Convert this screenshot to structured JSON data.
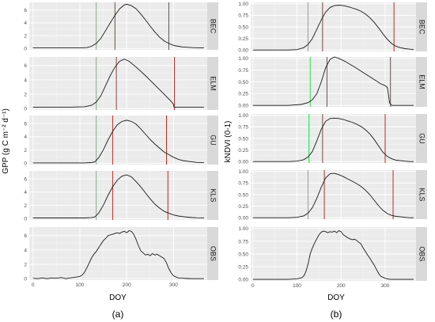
{
  "colors": {
    "green_line": "#33dd55",
    "red_line": "#b2322c"
  },
  "panel_a": {
    "label": "(a)",
    "ylabel": "GPP (g C m⁻² d⁻¹)",
    "xlabel": "DOY"
  },
  "panel_b": {
    "label": "(b)",
    "ylabel": "kNDVI (0-1)",
    "xlabel": "DOY"
  },
  "chart_data": [
    {
      "type": "line",
      "title": "",
      "panel_label": "(a)",
      "xlabel": "DOY",
      "ylabel": "GPP (g C m⁻² d⁻¹)",
      "xlim": [
        -8,
        372
      ],
      "xticks": [
        0,
        100,
        200,
        300
      ],
      "grid": true,
      "facets": [
        {
          "name": "BEC",
          "ylim": [
            -0.2,
            7.2
          ],
          "yticks": [
            0,
            2,
            4,
            6
          ],
          "x": [
            0,
            80,
            100,
            115,
            125,
            135,
            145,
            155,
            165,
            175,
            185,
            195,
            200,
            210,
            220,
            230,
            240,
            250,
            260,
            270,
            280,
            290,
            300,
            310,
            320,
            330,
            340,
            350,
            365
          ],
          "y": [
            0.1,
            0.1,
            0.1,
            0.15,
            0.35,
            0.8,
            1.6,
            2.8,
            4.0,
            5.2,
            6.2,
            6.8,
            6.9,
            6.7,
            6.2,
            5.4,
            4.5,
            3.5,
            2.6,
            1.8,
            1.2,
            0.8,
            0.5,
            0.35,
            0.25,
            0.2,
            0.15,
            0.12,
            0.1
          ],
          "vlines": [
            {
              "x": 135,
              "color": "green"
            },
            {
              "x": 175,
              "color": "red"
            },
            {
              "x": 290,
              "color": "red"
            }
          ]
        },
        {
          "name": "ELM",
          "ylim": [
            -0.2,
            7.2
          ],
          "yticks": [
            0,
            2,
            4,
            6
          ],
          "x": [
            0,
            80,
            110,
            125,
            135,
            145,
            155,
            165,
            175,
            185,
            195,
            205,
            220,
            240,
            260,
            280,
            295,
            300,
            301,
            310,
            320,
            340,
            365
          ],
          "y": [
            0.2,
            0.2,
            0.25,
            0.45,
            0.9,
            1.8,
            3.2,
            4.6,
            5.8,
            6.6,
            6.9,
            6.6,
            5.8,
            4.6,
            3.3,
            2.0,
            1.0,
            0.6,
            0.2,
            0.2,
            0.2,
            0.2,
            0.2
          ],
          "vlines": [
            {
              "x": 135,
              "color": "green"
            },
            {
              "x": 178,
              "color": "red"
            },
            {
              "x": 302,
              "color": "red"
            }
          ]
        },
        {
          "name": "GU",
          "ylim": [
            -0.2,
            7.2
          ],
          "yticks": [
            0,
            2,
            4,
            6
          ],
          "x": [
            0,
            80,
            110,
            125,
            132,
            140,
            150,
            160,
            170,
            180,
            190,
            200,
            210,
            220,
            230,
            240,
            250,
            260,
            270,
            280,
            290,
            300,
            310,
            320,
            330,
            340,
            350,
            365
          ],
          "y": [
            0.05,
            0.05,
            0.05,
            0.1,
            0.2,
            0.8,
            2.0,
            3.5,
            4.8,
            5.8,
            6.3,
            6.5,
            6.3,
            5.9,
            5.2,
            4.4,
            3.6,
            2.9,
            2.3,
            1.7,
            1.3,
            0.9,
            0.6,
            0.4,
            0.3,
            0.2,
            0.12,
            0.08
          ],
          "vlines": [
            {
              "x": 135,
              "color": "green"
            },
            {
              "x": 170,
              "color": "red"
            },
            {
              "x": 285,
              "color": "red"
            }
          ]
        },
        {
          "name": "KLS",
          "ylim": [
            -0.2,
            7.2
          ],
          "yticks": [
            0,
            2,
            4,
            6
          ],
          "x": [
            0,
            80,
            110,
            125,
            132,
            140,
            150,
            160,
            170,
            180,
            190,
            200,
            210,
            220,
            230,
            240,
            250,
            260,
            270,
            280,
            290,
            300,
            310,
            320,
            330,
            340,
            350,
            365
          ],
          "y": [
            0.1,
            0.1,
            0.1,
            0.15,
            0.25,
            0.8,
            2.0,
            3.5,
            4.8,
            5.8,
            6.4,
            6.6,
            6.3,
            5.6,
            4.8,
            3.9,
            3.0,
            2.2,
            1.6,
            1.1,
            0.8,
            0.55,
            0.4,
            0.3,
            0.22,
            0.16,
            0.12,
            0.1
          ],
          "vlines": [
            {
              "x": 135,
              "color": "green"
            },
            {
              "x": 170,
              "color": "red"
            },
            {
              "x": 288,
              "color": "red"
            }
          ]
        },
        {
          "name": "OBS",
          "ylim": [
            -0.2,
            7.2
          ],
          "yticks": [
            0,
            2,
            4,
            6
          ],
          "x": [
            0,
            10,
            20,
            30,
            40,
            50,
            60,
            70,
            80,
            90,
            100,
            105,
            110,
            115,
            120,
            125,
            130,
            135,
            140,
            145,
            150,
            155,
            160,
            165,
            170,
            175,
            180,
            185,
            190,
            195,
            200,
            205,
            210,
            215,
            220,
            225,
            230,
            235,
            240,
            245,
            250,
            255,
            260,
            265,
            270,
            275,
            280,
            285,
            290,
            295,
            300,
            310,
            320,
            330,
            340,
            350,
            360,
            365
          ],
          "y": [
            0.05,
            0.0,
            0.1,
            0.0,
            0.1,
            0.05,
            0.15,
            0.0,
            0.1,
            0.2,
            0.3,
            0.5,
            0.9,
            1.5,
            2.2,
            2.9,
            3.4,
            3.8,
            4.3,
            4.8,
            5.3,
            5.6,
            6.0,
            6.1,
            6.2,
            6.3,
            6.4,
            6.3,
            6.5,
            6.6,
            6.4,
            6.7,
            6.6,
            6.2,
            5.5,
            4.6,
            3.9,
            3.6,
            3.3,
            3.4,
            3.2,
            3.5,
            3.3,
            3.4,
            3.2,
            3.0,
            2.8,
            2.2,
            1.4,
            0.8,
            0.4,
            0.1,
            0.05,
            0.02,
            0.0,
            0.0,
            0.0,
            0.0
          ],
          "vlines": []
        }
      ]
    },
    {
      "type": "line",
      "title": "",
      "panel_label": "(b)",
      "xlabel": "DOY",
      "ylabel": "kNDVI (0-1)",
      "xlim": [
        -5,
        370
      ],
      "xticks": [
        0,
        100,
        200,
        300
      ],
      "grid": true,
      "facets": [
        {
          "name": "BEC",
          "ylim": [
            -0.03,
            1.03
          ],
          "yticks": [
            0.0,
            0.25,
            0.5,
            0.75,
            1.0
          ],
          "ytick_labels": [
            "0.00",
            "0.25",
            "0.50",
            "0.75",
            "1.00"
          ],
          "x": [
            0,
            80,
            100,
            115,
            125,
            135,
            145,
            155,
            165,
            175,
            185,
            195,
            205,
            215,
            225,
            235,
            245,
            255,
            265,
            275,
            285,
            295,
            305,
            315,
            325,
            335,
            345,
            355,
            365
          ],
          "y": [
            0.0,
            0.0,
            0.01,
            0.05,
            0.12,
            0.25,
            0.45,
            0.65,
            0.82,
            0.92,
            0.96,
            0.97,
            0.96,
            0.94,
            0.91,
            0.88,
            0.84,
            0.78,
            0.7,
            0.6,
            0.48,
            0.35,
            0.23,
            0.14,
            0.08,
            0.05,
            0.03,
            0.02,
            0.01
          ],
          "vlines": [
            {
              "x": 125,
              "color": "green"
            },
            {
              "x": 158,
              "color": "red"
            },
            {
              "x": 320,
              "color": "red"
            }
          ]
        },
        {
          "name": "ELM",
          "ylim": [
            -0.03,
            1.03
          ],
          "yticks": [
            0.0,
            0.25,
            0.5,
            0.75,
            1.0
          ],
          "ytick_labels": [
            "0.00",
            "0.25",
            "0.50",
            "0.75",
            "1.00"
          ],
          "x": [
            0,
            80,
            110,
            125,
            135,
            145,
            155,
            165,
            175,
            185,
            195,
            210,
            230,
            250,
            270,
            290,
            300,
            305,
            308,
            310,
            315,
            330,
            350,
            365
          ],
          "y": [
            0.0,
            0.0,
            0.02,
            0.06,
            0.12,
            0.25,
            0.5,
            0.8,
            0.98,
            1.03,
            1.0,
            0.93,
            0.82,
            0.7,
            0.58,
            0.46,
            0.42,
            0.38,
            0.2,
            0.05,
            0.0,
            0.0,
            0.0,
            0.0
          ],
          "vlines": [
            {
              "x": 130,
              "color": "green"
            },
            {
              "x": 168,
              "color": "red"
            },
            {
              "x": 312,
              "color": "red"
            }
          ]
        },
        {
          "name": "GU",
          "ylim": [
            -0.03,
            1.03
          ],
          "yticks": [
            0.0,
            0.25,
            0.5,
            0.75,
            1.0
          ],
          "ytick_labels": [
            "0.00",
            "0.25",
            "0.50",
            "0.75",
            "1.00"
          ],
          "x": [
            0,
            80,
            100,
            115,
            125,
            135,
            145,
            155,
            165,
            175,
            185,
            195,
            205,
            215,
            225,
            235,
            245,
            255,
            265,
            275,
            285,
            295,
            305,
            315,
            325,
            335,
            345,
            355,
            365
          ],
          "y": [
            0.0,
            0.0,
            0.01,
            0.04,
            0.1,
            0.22,
            0.45,
            0.7,
            0.87,
            0.93,
            0.94,
            0.93,
            0.91,
            0.88,
            0.85,
            0.81,
            0.76,
            0.69,
            0.6,
            0.48,
            0.34,
            0.2,
            0.11,
            0.06,
            0.03,
            0.02,
            0.01,
            0.0,
            0.0
          ],
          "vlines": [
            {
              "x": 127,
              "color": "green"
            },
            {
              "x": 158,
              "color": "red"
            },
            {
              "x": 300,
              "color": "red"
            }
          ]
        },
        {
          "name": "KLS",
          "ylim": [
            -0.03,
            1.03
          ],
          "yticks": [
            0.0,
            0.25,
            0.5,
            0.75,
            1.0
          ],
          "ytick_labels": [
            "0.00",
            "0.25",
            "0.50",
            "0.75",
            "1.00"
          ],
          "x": [
            0,
            80,
            100,
            115,
            125,
            135,
            145,
            155,
            165,
            175,
            185,
            195,
            205,
            215,
            225,
            235,
            245,
            255,
            265,
            275,
            285,
            295,
            305,
            315,
            325,
            335,
            345,
            355,
            365
          ],
          "y": [
            0.0,
            0.0,
            0.01,
            0.04,
            0.1,
            0.22,
            0.42,
            0.66,
            0.86,
            0.95,
            0.96,
            0.93,
            0.89,
            0.84,
            0.79,
            0.74,
            0.68,
            0.6,
            0.5,
            0.38,
            0.26,
            0.16,
            0.09,
            0.05,
            0.03,
            0.02,
            0.01,
            0.0,
            0.0
          ],
          "vlines": [
            {
              "x": 125,
              "color": "green"
            },
            {
              "x": 162,
              "color": "red"
            },
            {
              "x": 318,
              "color": "red"
            }
          ]
        },
        {
          "name": "OBS",
          "ylim": [
            -0.03,
            1.03
          ],
          "yticks": [
            0.0,
            0.25,
            0.5,
            0.75,
            1.0
          ],
          "ytick_labels": [
            "0.00",
            "0.25",
            "0.50",
            "0.75",
            "1.00"
          ],
          "x": [
            0,
            20,
            40,
            60,
            80,
            100,
            110,
            115,
            120,
            125,
            130,
            135,
            140,
            145,
            150,
            155,
            160,
            165,
            170,
            175,
            180,
            185,
            190,
            195,
            200,
            205,
            210,
            215,
            220,
            225,
            230,
            235,
            240,
            245,
            250,
            255,
            260,
            265,
            270,
            275,
            280,
            285,
            290,
            300,
            310,
            330,
            350,
            365
          ],
          "y": [
            0.0,
            0.0,
            0.0,
            0.0,
            0.0,
            0.01,
            0.03,
            0.06,
            0.15,
            0.3,
            0.5,
            0.62,
            0.72,
            0.8,
            0.88,
            0.93,
            0.95,
            0.94,
            0.92,
            0.94,
            0.93,
            0.95,
            0.92,
            0.96,
            0.94,
            0.88,
            0.85,
            0.82,
            0.8,
            0.78,
            0.79,
            0.77,
            0.73,
            0.7,
            0.62,
            0.55,
            0.48,
            0.42,
            0.35,
            0.28,
            0.2,
            0.12,
            0.06,
            0.02,
            0.0,
            0.0,
            0.0,
            0.0
          ],
          "vlines": []
        }
      ]
    }
  ]
}
